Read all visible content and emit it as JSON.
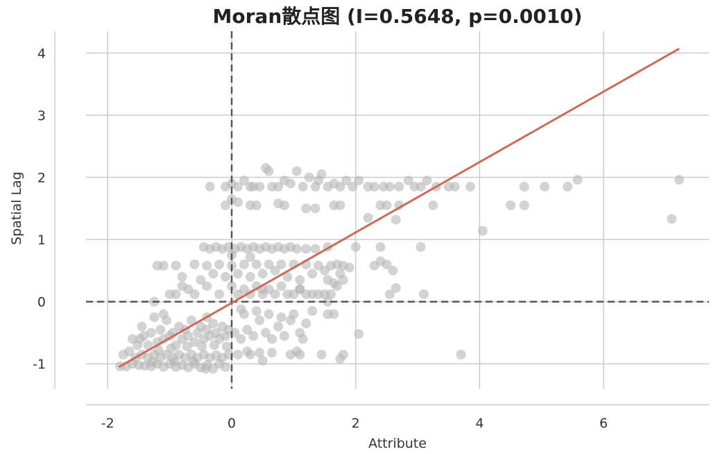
{
  "chart_data": {
    "type": "scatter",
    "title": "Moran散点图 (I=0.5648, p=0.0010)",
    "xlabel": "Attribute",
    "ylabel": "Spatial Lag",
    "xlim": [
      -2.35,
      7.7
    ],
    "ylim": [
      -1.4,
      4.35
    ],
    "xticks": [
      -2,
      0,
      2,
      4,
      6
    ],
    "yticks": [
      -1,
      0,
      1,
      2,
      3,
      4
    ],
    "xtick_labels": [
      "-2",
      "0",
      "2",
      "4",
      "6"
    ],
    "ytick_labels": [
      "-1",
      "0",
      "1",
      "2",
      "3",
      "4"
    ],
    "grid": true,
    "reference_lines": {
      "x": 0,
      "y": 0
    },
    "colors": {
      "points": "#b5b5b5",
      "fit_line": "#cd6b58",
      "reference": "#555555",
      "grid": "#cccccc"
    },
    "fit_line": {
      "x": [
        -1.82,
        7.22
      ],
      "y": [
        -1.05,
        4.07
      ]
    },
    "points": [
      [
        -1.8,
        -1.04
      ],
      [
        -1.75,
        -0.85
      ],
      [
        -1.7,
        -1.04
      ],
      [
        -1.65,
        -0.8
      ],
      [
        -1.6,
        -1.0
      ],
      [
        -1.55,
        -0.9
      ],
      [
        -1.5,
        -1.02
      ],
      [
        -1.45,
        -0.85
      ],
      [
        -1.4,
        -1.03
      ],
      [
        -1.35,
        -0.9
      ],
      [
        -1.3,
        -1.04
      ],
      [
        -1.25,
        -0.85
      ],
      [
        -1.2,
        -1.0
      ],
      [
        -1.15,
        -0.9
      ],
      [
        -1.1,
        -1.05
      ],
      [
        -1.05,
        -0.85
      ],
      [
        -1.0,
        -1.0
      ],
      [
        -0.95,
        -0.9
      ],
      [
        -0.9,
        -1.05
      ],
      [
        -0.85,
        -0.85
      ],
      [
        -0.8,
        -1.02
      ],
      [
        -0.75,
        -0.9
      ],
      [
        -0.7,
        -1.06
      ],
      [
        -0.65,
        -0.85
      ],
      [
        -0.6,
        -1.0
      ],
      [
        -0.55,
        -0.9
      ],
      [
        -0.5,
        -1.06
      ],
      [
        -0.45,
        -0.85
      ],
      [
        -0.4,
        -1.02
      ],
      [
        -0.35,
        -0.9
      ],
      [
        -0.3,
        -1.08
      ],
      [
        -0.25,
        -0.86
      ],
      [
        -0.2,
        -1.0
      ],
      [
        -0.15,
        -0.9
      ],
      [
        -0.1,
        -1.05
      ],
      [
        -0.05,
        -0.85
      ],
      [
        -1.28,
        -0.97
      ],
      [
        -0.92,
        -0.96
      ],
      [
        -0.62,
        -0.96
      ],
      [
        -0.42,
        -1.08
      ],
      [
        -1.48,
        -0.6
      ],
      [
        -1.45,
        -0.4
      ],
      [
        -1.42,
        -0.55
      ],
      [
        -1.3,
        -0.5
      ],
      [
        -1.25,
        -0.25
      ],
      [
        -1.2,
        -0.65
      ],
      [
        -1.15,
        -0.45
      ],
      [
        -1.1,
        -0.6
      ],
      [
        -1.05,
        -0.3
      ],
      [
        -1.0,
        -0.55
      ],
      [
        -0.95,
        -0.5
      ],
      [
        -0.9,
        -0.7
      ],
      [
        -0.85,
        -0.4
      ],
      [
        -0.8,
        -0.6
      ],
      [
        -0.75,
        -0.45
      ],
      [
        -0.7,
        -0.55
      ],
      [
        -0.65,
        -0.3
      ],
      [
        -0.6,
        -0.65
      ],
      [
        -0.55,
        -0.5
      ],
      [
        -0.5,
        -0.4
      ],
      [
        -0.45,
        -0.6
      ],
      [
        -0.4,
        -0.45
      ],
      [
        -0.35,
        -0.55
      ],
      [
        -0.3,
        -0.35
      ],
      [
        -0.25,
        -0.5
      ],
      [
        -0.2,
        -0.6
      ],
      [
        -0.15,
        -0.4
      ],
      [
        -0.1,
        -0.55
      ],
      [
        -0.05,
        -0.45
      ],
      [
        -1.35,
        -0.7
      ],
      [
        -1.6,
        -0.6
      ],
      [
        -1.52,
        -0.7
      ],
      [
        -1.18,
        -0.78
      ],
      [
        -0.98,
        -0.75
      ],
      [
        -0.72,
        -0.72
      ],
      [
        -0.48,
        -0.72
      ],
      [
        -0.28,
        -0.7
      ],
      [
        -0.08,
        -0.72
      ],
      [
        -1.1,
        -0.2
      ],
      [
        -0.4,
        -0.25
      ],
      [
        0.05,
        -0.5
      ],
      [
        0.15,
        -0.6
      ],
      [
        0.25,
        -0.45
      ],
      [
        0.35,
        -0.55
      ],
      [
        0.45,
        -0.3
      ],
      [
        0.55,
        -0.5
      ],
      [
        0.65,
        -0.6
      ],
      [
        0.75,
        -0.4
      ],
      [
        0.85,
        -0.55
      ],
      [
        0.95,
        -0.3
      ],
      [
        0.2,
        -0.2
      ],
      [
        0.4,
        -0.15
      ],
      [
        0.6,
        -0.2
      ],
      [
        0.8,
        -0.25
      ],
      [
        1.0,
        -0.2
      ],
      [
        1.1,
        -0.5
      ],
      [
        1.2,
        -0.35
      ],
      [
        1.3,
        -0.15
      ],
      [
        1.55,
        -0.2
      ],
      [
        1.65,
        -0.2
      ],
      [
        0.3,
        -0.85
      ],
      [
        0.5,
        -0.95
      ],
      [
        0.25,
        -0.8
      ],
      [
        0.1,
        -0.85
      ],
      [
        0.95,
        -0.85
      ],
      [
        1.1,
        -0.85
      ],
      [
        1.45,
        -0.85
      ],
      [
        1.75,
        -0.92
      ],
      [
        1.8,
        -0.85
      ],
      [
        3.7,
        -0.85
      ],
      [
        0.15,
        -0.12
      ],
      [
        2.05,
        -0.52
      ],
      [
        1.15,
        -0.6
      ],
      [
        0.45,
        -0.82
      ],
      [
        0.65,
        -0.82
      ],
      [
        1.05,
        -0.8
      ],
      [
        -1.25,
        0.0
      ],
      [
        -1.0,
        0.12
      ],
      [
        -0.8,
        0.25
      ],
      [
        -0.6,
        0.12
      ],
      [
        -0.4,
        0.25
      ],
      [
        -0.2,
        0.12
      ],
      [
        0.0,
        0.25
      ],
      [
        0.1,
        0.12
      ],
      [
        0.2,
        0.2
      ],
      [
        0.3,
        0.12
      ],
      [
        0.4,
        0.25
      ],
      [
        0.5,
        0.12
      ],
      [
        0.6,
        0.2
      ],
      [
        0.7,
        0.12
      ],
      [
        0.8,
        0.25
      ],
      [
        0.9,
        0.12
      ],
      [
        1.0,
        0.12
      ],
      [
        1.1,
        0.2
      ],
      [
        1.2,
        0.12
      ],
      [
        1.3,
        0.12
      ],
      [
        1.4,
        0.12
      ],
      [
        1.5,
        0.12
      ],
      [
        1.6,
        0.12
      ],
      [
        2.55,
        0.12
      ],
      [
        2.65,
        0.22
      ],
      [
        3.1,
        0.12
      ],
      [
        -0.9,
        0.12
      ],
      [
        -0.7,
        0.2
      ],
      [
        1.55,
        0.0
      ],
      [
        1.7,
        0.25
      ],
      [
        -1.2,
        0.58
      ],
      [
        -1.1,
        0.58
      ],
      [
        -0.9,
        0.58
      ],
      [
        -0.8,
        0.4
      ],
      [
        -0.6,
        0.6
      ],
      [
        -0.5,
        0.35
      ],
      [
        -0.4,
        0.58
      ],
      [
        -0.3,
        0.45
      ],
      [
        -0.2,
        0.6
      ],
      [
        -0.1,
        0.4
      ],
      [
        0.0,
        0.58
      ],
      [
        0.1,
        0.45
      ],
      [
        0.2,
        0.6
      ],
      [
        0.3,
        0.4
      ],
      [
        0.4,
        0.6
      ],
      [
        0.5,
        0.45
      ],
      [
        0.6,
        0.6
      ],
      [
        0.7,
        0.5
      ],
      [
        0.8,
        0.6
      ],
      [
        0.9,
        0.4
      ],
      [
        1.0,
        0.6
      ],
      [
        1.1,
        0.35
      ],
      [
        1.2,
        0.6
      ],
      [
        1.3,
        0.45
      ],
      [
        1.4,
        0.58
      ],
      [
        1.5,
        0.5
      ],
      [
        1.6,
        0.58
      ],
      [
        1.7,
        0.6
      ],
      [
        1.8,
        0.58
      ],
      [
        1.9,
        0.55
      ],
      [
        2.3,
        0.58
      ],
      [
        2.4,
        0.65
      ],
      [
        2.5,
        0.6
      ],
      [
        2.6,
        0.5
      ],
      [
        1.55,
        0.35
      ],
      [
        1.65,
        0.3
      ],
      [
        1.75,
        0.45
      ],
      [
        1.8,
        0.35
      ],
      [
        1.1,
        0.2
      ],
      [
        0.5,
        0.2
      ],
      [
        -0.45,
        0.88
      ],
      [
        -0.35,
        0.85
      ],
      [
        -0.25,
        0.88
      ],
      [
        -0.15,
        0.85
      ],
      [
        -0.05,
        0.88
      ],
      [
        0.05,
        0.85
      ],
      [
        0.15,
        0.88
      ],
      [
        0.25,
        0.85
      ],
      [
        0.35,
        0.88
      ],
      [
        0.45,
        0.85
      ],
      [
        0.55,
        0.88
      ],
      [
        0.65,
        0.85
      ],
      [
        0.75,
        0.88
      ],
      [
        0.85,
        0.85
      ],
      [
        0.95,
        0.88
      ],
      [
        1.05,
        0.85
      ],
      [
        1.35,
        0.85
      ],
      [
        1.55,
        0.88
      ],
      [
        2.0,
        0.88
      ],
      [
        2.4,
        0.88
      ],
      [
        3.05,
        0.88
      ],
      [
        1.2,
        0.85
      ],
      [
        0.0,
        0.75
      ],
      [
        0.3,
        0.72
      ],
      [
        -0.1,
        1.55
      ],
      [
        0.0,
        1.65
      ],
      [
        0.1,
        1.6
      ],
      [
        0.3,
        1.55
      ],
      [
        0.4,
        1.55
      ],
      [
        0.75,
        1.58
      ],
      [
        0.85,
        1.55
      ],
      [
        1.2,
        1.5
      ],
      [
        1.35,
        1.5
      ],
      [
        1.65,
        1.55
      ],
      [
        1.75,
        1.55
      ],
      [
        2.2,
        1.35
      ],
      [
        2.4,
        1.55
      ],
      [
        2.5,
        1.55
      ],
      [
        2.65,
        1.32
      ],
      [
        2.7,
        1.55
      ],
      [
        3.25,
        1.55
      ],
      [
        4.05,
        1.14
      ],
      [
        4.5,
        1.55
      ],
      [
        4.72,
        1.55
      ],
      [
        7.1,
        1.33
      ],
      [
        -0.35,
        1.85
      ],
      [
        -0.1,
        1.85
      ],
      [
        0.0,
        1.9
      ],
      [
        0.1,
        1.85
      ],
      [
        0.2,
        1.95
      ],
      [
        0.3,
        1.85
      ],
      [
        0.45,
        1.85
      ],
      [
        0.55,
        2.15
      ],
      [
        0.6,
        2.1
      ],
      [
        0.65,
        1.85
      ],
      [
        0.75,
        1.85
      ],
      [
        0.85,
        1.95
      ],
      [
        0.95,
        1.9
      ],
      [
        1.05,
        2.1
      ],
      [
        1.15,
        1.85
      ],
      [
        1.25,
        2.0
      ],
      [
        1.35,
        1.85
      ],
      [
        1.45,
        2.05
      ],
      [
        1.55,
        1.85
      ],
      [
        1.65,
        1.9
      ],
      [
        1.75,
        1.85
      ],
      [
        1.85,
        1.95
      ],
      [
        1.95,
        1.85
      ],
      [
        2.05,
        1.95
      ],
      [
        2.2,
        1.85
      ],
      [
        2.3,
        1.85
      ],
      [
        2.45,
        1.85
      ],
      [
        2.55,
        1.85
      ],
      [
        2.7,
        1.85
      ],
      [
        2.85,
        1.95
      ],
      [
        2.95,
        1.85
      ],
      [
        3.05,
        1.85
      ],
      [
        3.15,
        1.95
      ],
      [
        3.3,
        1.85
      ],
      [
        3.5,
        1.85
      ],
      [
        3.6,
        1.85
      ],
      [
        3.85,
        1.85
      ],
      [
        4.72,
        1.85
      ],
      [
        5.05,
        1.85
      ],
      [
        5.42,
        1.85
      ],
      [
        5.58,
        1.96
      ],
      [
        7.22,
        1.96
      ],
      [
        1.4,
        1.95
      ],
      [
        0.35,
        1.85
      ]
    ]
  }
}
